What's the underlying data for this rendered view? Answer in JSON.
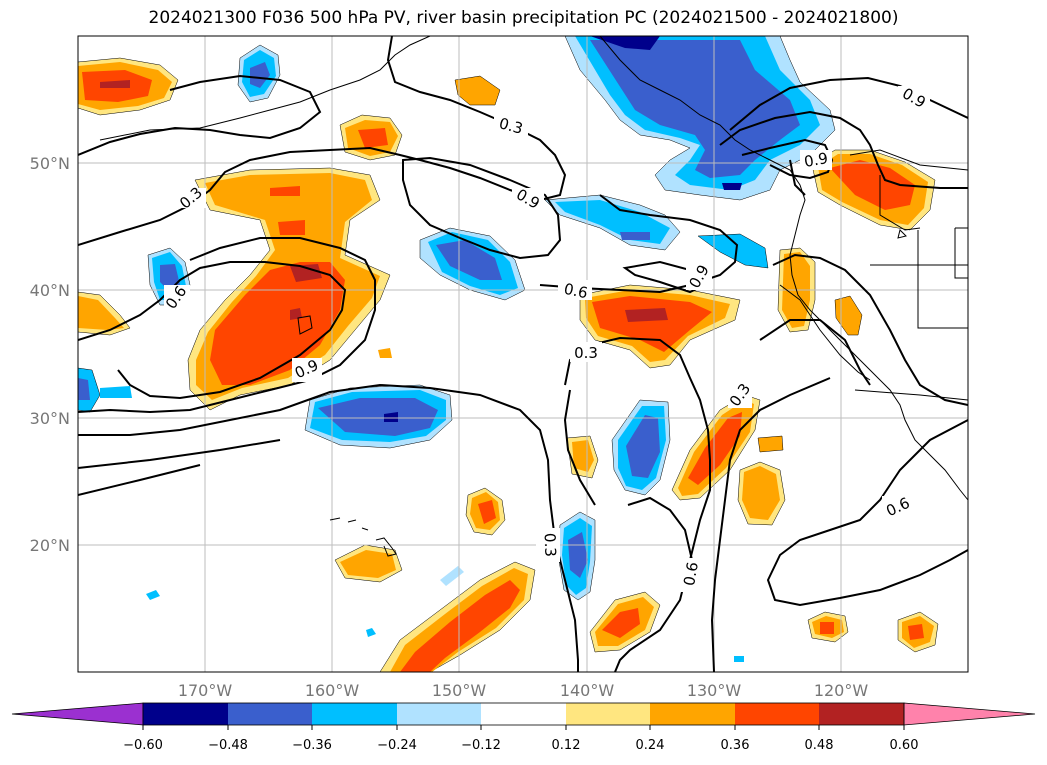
{
  "title": "2024021300 F036 500 hPa PV, river basin precipitation PC (2024021500 - 2024021800)",
  "map": {
    "projection": "PlateCarree",
    "lon_range": [
      -180,
      -110
    ],
    "lat_range": [
      10,
      60
    ],
    "gridlines": true,
    "lat_ticks": [
      {
        "v": 20,
        "label": "20°N"
      },
      {
        "v": 30,
        "label": "30°N"
      },
      {
        "v": 40,
        "label": "40°N"
      },
      {
        "v": 50,
        "label": "50°N"
      }
    ],
    "lon_ticks": [
      {
        "v": -170,
        "label": "170°W"
      },
      {
        "v": -160,
        "label": "160°W"
      },
      {
        "v": -150,
        "label": "150°W"
      },
      {
        "v": -140,
        "label": "140°W"
      },
      {
        "v": -130,
        "label": "130°W"
      },
      {
        "v": -120,
        "label": "120°W"
      }
    ]
  },
  "contour_labels": [
    "0.3",
    "0.3",
    "0.3",
    "0.3",
    "0.3",
    "0.6",
    "0.6",
    "0.6",
    "0.9",
    "0.9",
    "0.9",
    "0.9",
    "0.9",
    "0.6"
  ],
  "colorbar": {
    "extend": "both",
    "boundaries": [
      -0.6,
      -0.48,
      -0.36,
      -0.24,
      -0.12,
      0.12,
      0.24,
      0.36,
      0.48,
      0.6
    ],
    "tick_labels": [
      "−0.60",
      "−0.48",
      "−0.36",
      "−0.24",
      "−0.12",
      "0.12",
      "0.24",
      "0.36",
      "0.48",
      "0.60"
    ],
    "colors": [
      "#9b30d0",
      "#00008b",
      "#3a5fcd",
      "#00bfff",
      "#b0e2ff",
      "#ffffff",
      "#ffe680",
      "#ffa500",
      "#ff4500",
      "#b22222",
      "#ff82ab"
    ]
  }
}
